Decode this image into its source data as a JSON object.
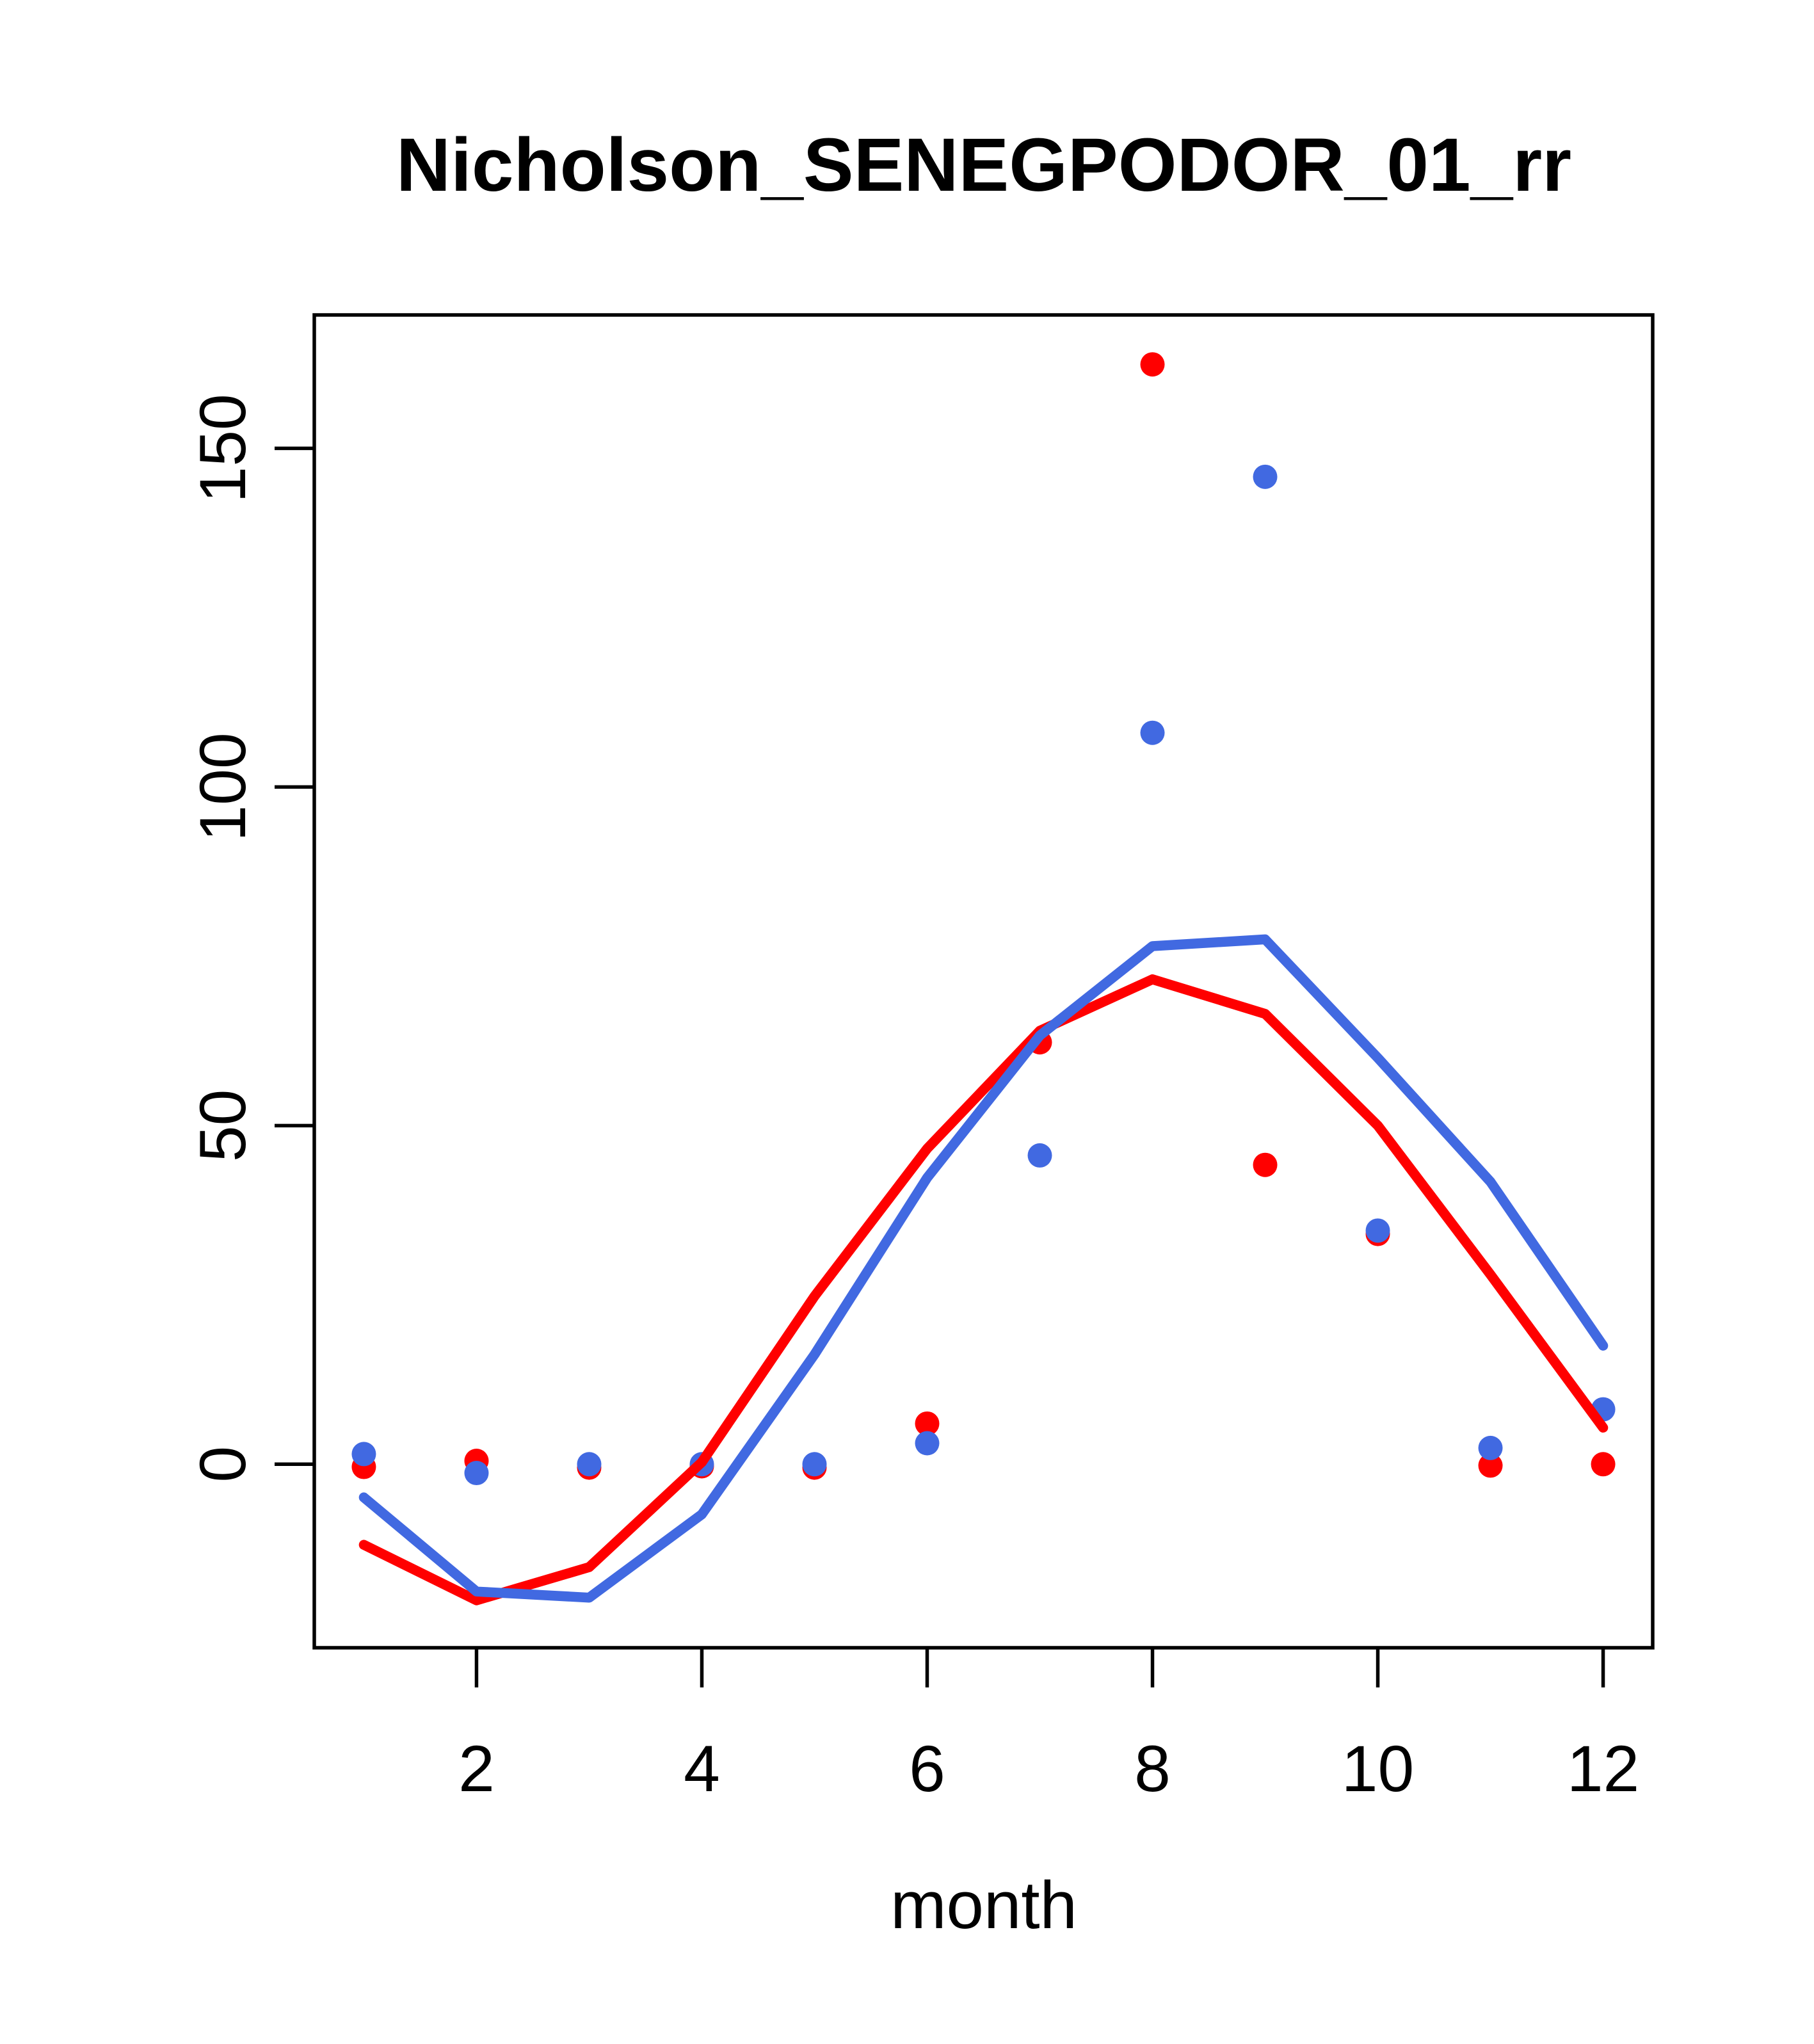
{
  "title": "Nicholson_SENEGPODOR_01_rr",
  "colors": {
    "red": "#FF0000",
    "blue": "#4169E1",
    "axis": "#000000",
    "background": "#FFFFFF"
  },
  "chart_data": {
    "type": "scatter",
    "title": "Nicholson_SENEGPODOR_01_rr",
    "xlabel": "month",
    "ylabel": "",
    "x": [
      1,
      2,
      3,
      4,
      5,
      6,
      7,
      8,
      9,
      10,
      11,
      12
    ],
    "xticks": [
      2,
      4,
      6,
      8,
      10,
      12
    ],
    "yticks": [
      0,
      50,
      100,
      150
    ],
    "xlim": [
      0.56,
      12.44
    ],
    "ylim": [
      -27.1,
      169.7
    ],
    "grid": false,
    "legend": "none",
    "series": [
      {
        "name": "red-points",
        "type": "points",
        "color": "#FF0000",
        "values": [
          -0.4,
          0.5,
          -0.5,
          -0.3,
          -0.5,
          6.0,
          62.3,
          162.4,
          44.2,
          34.0,
          -0.2,
          0.0
        ]
      },
      {
        "name": "blue-points",
        "type": "points",
        "color": "#4169E1",
        "values": [
          1.5,
          -1.3,
          0.0,
          0.0,
          0.0,
          3.1,
          45.6,
          108.0,
          145.8,
          34.5,
          2.4,
          8.1
        ]
      },
      {
        "name": "red-fit-line",
        "type": "line",
        "color": "#FF0000",
        "values": [
          -11.9,
          -20.1,
          -15.2,
          0.3,
          24.8,
          46.6,
          64.0,
          71.6,
          66.5,
          50.0,
          28.0,
          5.4
        ]
      },
      {
        "name": "blue-fit-line",
        "type": "line",
        "color": "#4169E1",
        "values": [
          -4.9,
          -18.8,
          -19.7,
          -7.4,
          16.2,
          42.3,
          63.3,
          76.5,
          77.5,
          60.0,
          41.7,
          17.5
        ]
      }
    ]
  }
}
